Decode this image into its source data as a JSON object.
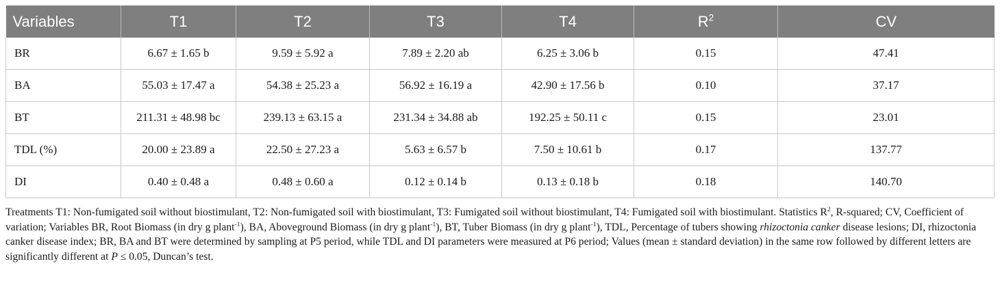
{
  "table": {
    "headers": [
      "Variables",
      "T1",
      "T2",
      "T3",
      "T4",
      "R",
      "CV"
    ],
    "r_sup": "2",
    "rows": [
      [
        "BR",
        "6.67 ± 1.65 b",
        "9.59 ± 5.92 a",
        "7.89 ± 2.20 ab",
        "6.25 ± 3.06 b",
        "0.15",
        "47.41"
      ],
      [
        "BA",
        "55.03 ± 17.47 a",
        "54.38 ± 25.23 a",
        "56.92 ± 16.19 a",
        "42.90 ± 17.56 b",
        "0.10",
        "37.17"
      ],
      [
        "BT",
        "211.31 ± 48.98 bc",
        "239.13 ± 63.15 a",
        "231.34 ± 34.88 ab",
        "192.25 ± 50.11 c",
        "0.15",
        "23.01"
      ],
      [
        "TDL (%)",
        "20.00 ± 23.89 a",
        "22.50 ± 27.23 a",
        "5.63 ± 6.57 b",
        "7.50 ± 10.61 b",
        "0.17",
        "137.77"
      ],
      [
        "DI",
        "0.40 ± 0.48 a",
        "0.48 ± 0.60 a",
        "0.12 ± 0.14 b",
        "0.13 ± 0.18 b",
        "0.18",
        "140.70"
      ]
    ]
  },
  "footnote": {
    "p1": "Treatments T1: Non-fumigated soil without biostimulant, T2: Non-fumigated soil with biostimulant, T3: Fumigated soil without biostimulant, T4: Fumigated soil with biostimulant. Statistics R",
    "p1_sup": "2",
    "p2": ", R-squared; CV, Coefficient of variation; Variables BR, Root Biomass (in dry g plant",
    "p2_sup": "-1",
    "p3": "), BA, Aboveground Biomass (in dry g plant",
    "p3_sup": "-1",
    "p4": "), BT, Tuber Biomass (in dry g plant",
    "p4_sup": "-1",
    "p5": "), TDL, Percentage of tubers showing ",
    "p5_italic": "rhizoctonia canker",
    "p6": " disease lesions; DI, rhizoctonia canker disease index; BR, BA and BT were determined by sampling at P5 period, while TDL and DI parameters were measured at P6 period; Values (mean ± standard deviation) in the same row followed by different letters are significantly different at ",
    "p6_italic": "P",
    "p7": " ≤ 0.05, Duncan’s test."
  }
}
